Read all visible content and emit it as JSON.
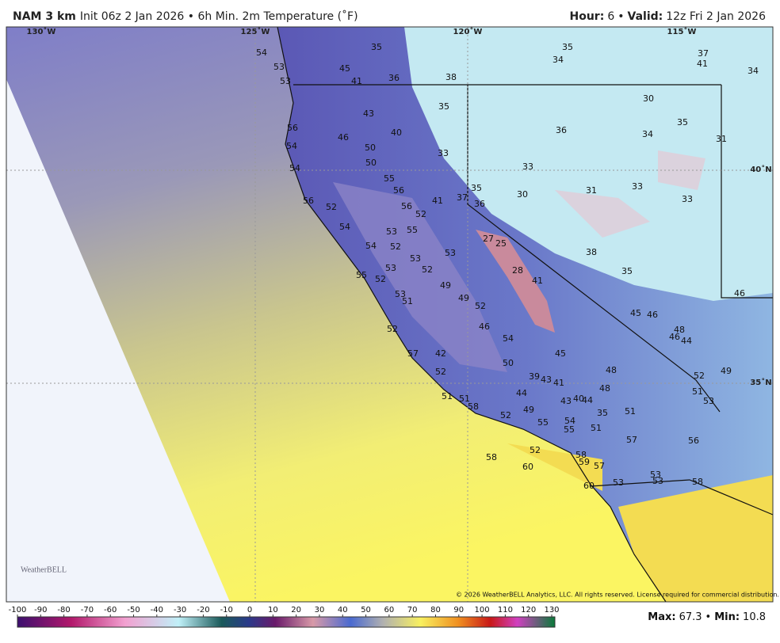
{
  "header": {
    "model": "NAM 3 km",
    "subtitle": "Init 06z 2 Jan 2026 • 6h Min. 2m Temperature (˚F)",
    "hour_label": "Hour:",
    "hour": 6,
    "separator": "•",
    "valid_label": "Valid:",
    "valid": "12z Fri 2 Jan 2026"
  },
  "graticule": {
    "lon": [
      "130˚W",
      "125˚W",
      "120˚W",
      "115˚W"
    ],
    "lat": [
      "40˚N",
      "35˚N"
    ]
  },
  "stations": [
    35,
    35,
    34,
    54,
    53,
    45,
    37,
    41,
    34,
    53,
    41,
    36,
    38,
    35,
    30,
    43,
    35,
    36,
    56,
    40,
    34,
    46,
    31,
    54,
    50,
    33,
    50,
    54,
    33,
    55,
    56,
    35,
    31,
    33,
    30,
    56,
    37,
    41,
    56,
    36,
    33,
    52,
    52,
    54,
    53,
    55,
    27,
    25,
    54,
    52,
    53,
    53,
    38,
    53,
    52,
    28,
    55,
    52,
    41,
    35,
    49,
    46,
    53,
    51,
    49,
    52,
    45,
    46,
    46,
    48,
    46,
    44,
    52,
    54,
    57,
    42,
    45,
    50,
    52,
    48,
    49,
    52,
    39,
    43,
    41,
    48,
    51,
    44,
    51,
    51,
    53,
    43,
    40,
    44,
    58,
    49,
    51,
    35,
    52,
    54,
    55,
    55,
    51,
    57,
    56,
    52,
    58,
    58,
    59,
    57,
    60,
    53,
    53,
    53,
    58,
    60
  ],
  "copyright": "© 2026 WeatherBELL Analytics, LLC. All rights reserved. License required for commercial distribution.",
  "logo": "WeatherBELL",
  "colorbar": {
    "ticks": [
      -100,
      -90,
      -80,
      -70,
      -60,
      -50,
      -40,
      -30,
      -20,
      -10,
      0,
      10,
      20,
      30,
      40,
      50,
      60,
      70,
      80,
      90,
      100,
      110,
      120,
      130
    ]
  },
  "footer": {
    "max_label": "Max:",
    "max": 67.3,
    "separator": "•",
    "min_label": "Min:",
    "min": 10.8
  }
}
